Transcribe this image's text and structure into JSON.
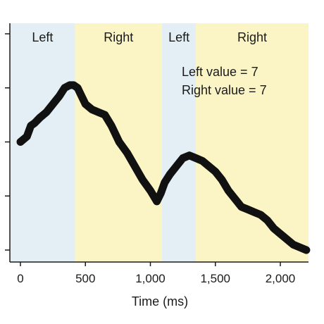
{
  "chart_data": {
    "type": "line",
    "xlabel": "Time (ms)",
    "ylabel": "",
    "xlim": [
      -80,
      2250
    ],
    "ylim": [
      0,
      4.3
    ],
    "x_ticks": [
      0,
      500,
      1000,
      1500,
      2000
    ],
    "x_tick_labels": [
      "0",
      "500",
      "1,000",
      "1,500",
      "2,000"
    ],
    "y_ticks": [
      0,
      1,
      2,
      3,
      4
    ],
    "regions": [
      {
        "label": "Left",
        "start": -80,
        "end": 420,
        "color": "#e3eff4"
      },
      {
        "label": "Right",
        "start": 420,
        "end": 1090,
        "color": "#fbf5c5"
      },
      {
        "label": "Left",
        "start": 1090,
        "end": 1350,
        "color": "#e3eff4"
      },
      {
        "label": "Right",
        "start": 1350,
        "end": 2250,
        "color": "#fbf5c5"
      }
    ],
    "annotations": [
      "Left value = 7",
      "Right value = 7"
    ],
    "series": [
      {
        "color": "#111111",
        "x": [
          0,
          50,
          80,
          110,
          150,
          200,
          250,
          300,
          340,
          380,
          410,
          440,
          470,
          500,
          550,
          600,
          650,
          700,
          760,
          820,
          880,
          940,
          1000,
          1050,
          1080,
          1110,
          1150,
          1200,
          1250,
          1300,
          1350,
          1400,
          1450,
          1500,
          1550,
          1600,
          1650,
          1700,
          1750,
          1800,
          1850,
          1900,
          1950,
          2000,
          2050,
          2100,
          2150,
          2200
        ],
        "y": [
          2.0,
          2.1,
          2.3,
          2.35,
          2.45,
          2.55,
          2.7,
          2.85,
          3.0,
          3.05,
          3.05,
          3.0,
          2.85,
          2.7,
          2.6,
          2.55,
          2.5,
          2.3,
          2.0,
          1.8,
          1.55,
          1.3,
          1.1,
          0.9,
          1.05,
          1.25,
          1.4,
          1.55,
          1.7,
          1.75,
          1.7,
          1.65,
          1.55,
          1.45,
          1.3,
          1.1,
          0.95,
          0.8,
          0.75,
          0.7,
          0.65,
          0.55,
          0.4,
          0.3,
          0.2,
          0.1,
          0.05,
          0.0
        ]
      }
    ]
  }
}
